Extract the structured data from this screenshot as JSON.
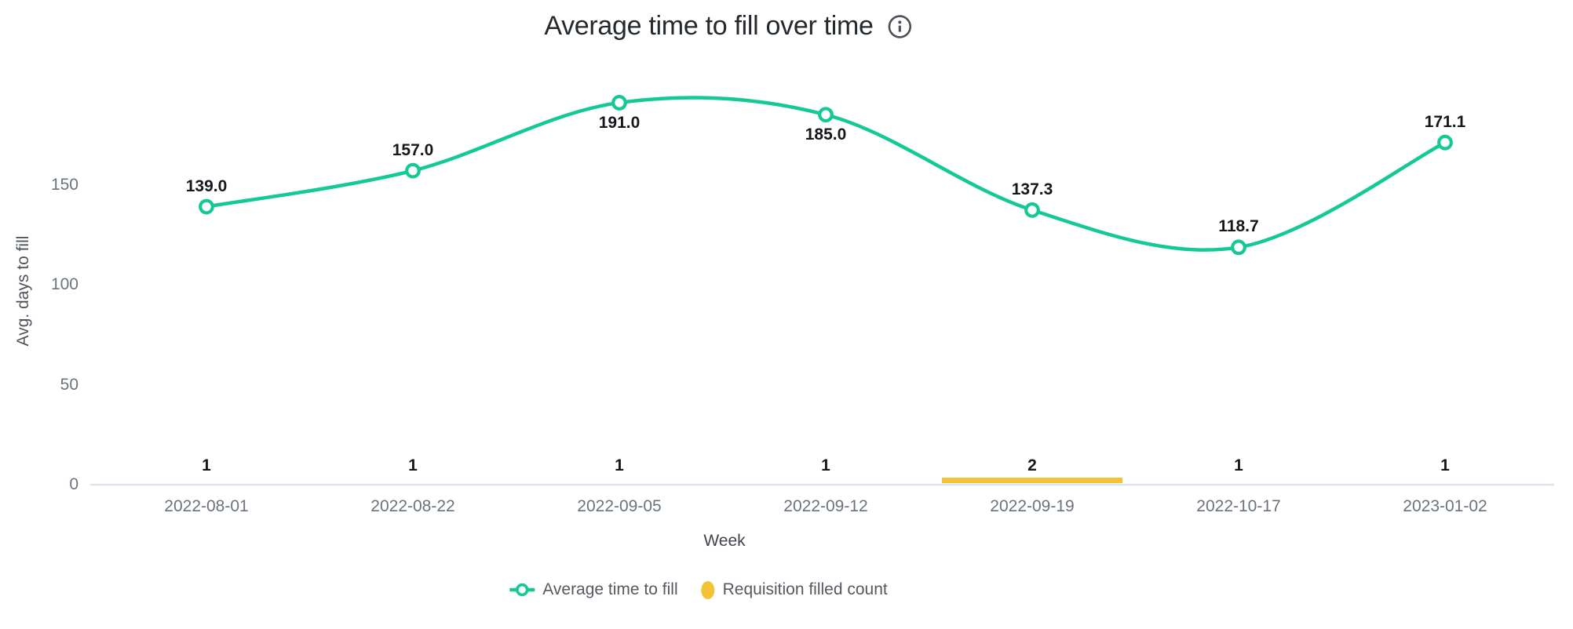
{
  "header": {
    "title": "Average time to fill over time"
  },
  "chart_data": {
    "type": "line",
    "title": "Average time to fill over time",
    "xlabel": "Week",
    "ylabel": "Avg. days to fill",
    "categories": [
      "2022-08-01",
      "2022-08-22",
      "2022-09-05",
      "2022-09-12",
      "2022-09-19",
      "2022-10-17",
      "2023-01-02"
    ],
    "series": [
      {
        "name": "Average time to fill",
        "type": "line",
        "color": "#14C996",
        "values": [
          139.0,
          157.0,
          191.0,
          185.0,
          137.3,
          118.7,
          171.1
        ],
        "point_labels": [
          "139.0",
          "157.0",
          "191.0",
          "185.0",
          "137.3",
          "118.7",
          "171.1"
        ],
        "label_positions": [
          "above",
          "above",
          "below",
          "below",
          "above",
          "above",
          "above"
        ]
      },
      {
        "name": "Requisition filled count",
        "type": "bar",
        "color": "#F3C236",
        "values": [
          1,
          1,
          1,
          1,
          2,
          1,
          1
        ],
        "count_labels": [
          "1",
          "1",
          "1",
          "1",
          "2",
          "1",
          "1"
        ]
      }
    ],
    "yticks": [
      0,
      50,
      100,
      150
    ],
    "ylim": [
      0,
      200
    ],
    "grid": false,
    "legend_position": "bottom"
  },
  "legend": {
    "items": [
      {
        "label": "Average time to fill",
        "marker": "line-circle-marker",
        "color": "#14C996"
      },
      {
        "label": "Requisition filled count",
        "marker": "dot-marker",
        "color": "#F3C236"
      }
    ]
  },
  "colors": {
    "line_green": "#14C996",
    "bar_yellow": "#F3C236",
    "axis_line": "#DCE3EC",
    "tick_text": "#6A737D",
    "label_text": "#14181C",
    "title_text": "#24292E"
  }
}
